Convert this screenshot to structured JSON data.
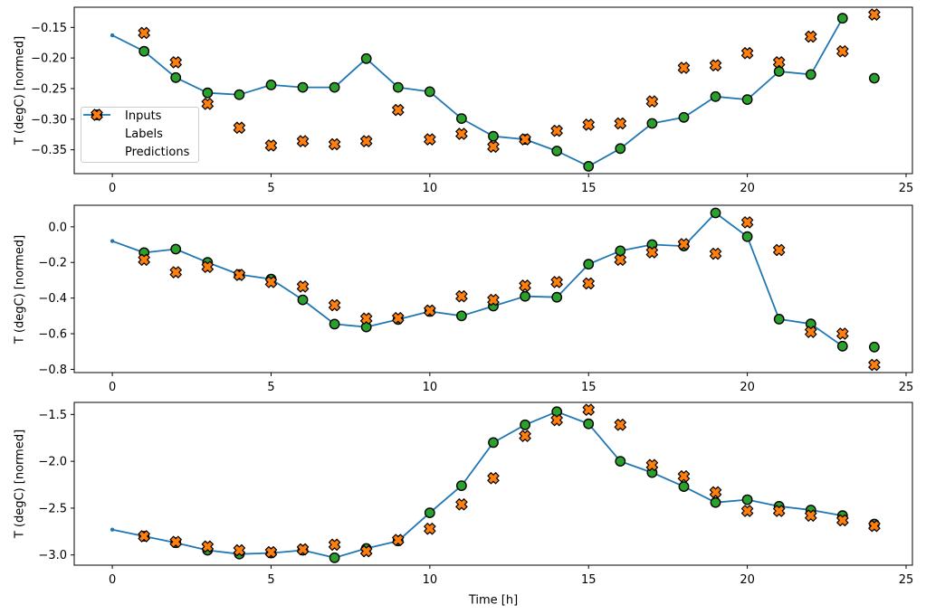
{
  "figure": {
    "title": "",
    "xlabel": "Time [h]",
    "ylabel": "T (degC) [normed]",
    "background": "#ffffff",
    "colors": {
      "inputs": "#1f77b4",
      "labels": "#2ca02c",
      "predictions": "#ff7f0e",
      "marker_edge": "#000000",
      "axis": "#000000",
      "legend_border": "#cccccc"
    },
    "legend": {
      "position": "upper-left-of-panel-1",
      "items": [
        {
          "label": "Inputs",
          "marker": "line-dot",
          "color": "#1f77b4"
        },
        {
          "label": "Labels",
          "marker": "circle",
          "color": "#2ca02c"
        },
        {
          "label": "Predictions",
          "marker": "X",
          "color": "#ff7f0e"
        }
      ]
    }
  },
  "chart_data": [
    {
      "panel": 1,
      "type": "line",
      "title": "",
      "ylabel": "T (degC) [normed]",
      "grid": false,
      "xlim": [
        -1.2,
        25.2
      ],
      "ylim": [
        -0.389,
        -0.117
      ],
      "xticks": {
        "values": [
          0,
          5,
          10,
          15,
          20,
          25
        ],
        "labels": [
          "0",
          "5",
          "10",
          "15",
          "20",
          "25"
        ]
      },
      "yticks": {
        "values": [
          -0.15,
          -0.2,
          -0.25,
          -0.3,
          -0.35
        ],
        "labels": [
          "−0.15",
          "−0.20",
          "−0.25",
          "−0.30",
          "−0.35"
        ]
      },
      "x_inputs": [
        0,
        1,
        2,
        3,
        4,
        5,
        6,
        7,
        8,
        9,
        10,
        11,
        12,
        13,
        14,
        15,
        16,
        17,
        18,
        19,
        20,
        21,
        22,
        23
      ],
      "x_targets": [
        1,
        2,
        3,
        4,
        5,
        6,
        7,
        8,
        9,
        10,
        11,
        12,
        13,
        14,
        15,
        16,
        17,
        18,
        19,
        20,
        21,
        22,
        23,
        24
      ],
      "inputs": [
        -0.163,
        -0.189,
        -0.232,
        -0.257,
        -0.26,
        -0.244,
        -0.248,
        -0.248,
        -0.201,
        -0.248,
        -0.255,
        -0.299,
        -0.328,
        -0.333,
        -0.352,
        -0.377,
        -0.348,
        -0.307,
        -0.297,
        -0.263,
        -0.268,
        -0.222,
        -0.227,
        -0.135
      ],
      "labels": [
        -0.189,
        -0.232,
        -0.257,
        -0.26,
        -0.244,
        -0.248,
        -0.248,
        -0.201,
        -0.248,
        -0.255,
        -0.299,
        -0.328,
        -0.333,
        -0.352,
        -0.377,
        -0.348,
        -0.307,
        -0.297,
        -0.263,
        -0.268,
        -0.222,
        -0.227,
        -0.135,
        -0.233
      ],
      "predictions": [
        -0.159,
        -0.207,
        -0.275,
        -0.314,
        -0.343,
        -0.336,
        -0.341,
        -0.336,
        -0.285,
        -0.333,
        -0.324,
        -0.345,
        -0.333,
        -0.319,
        -0.309,
        -0.307,
        -0.271,
        -0.216,
        -0.212,
        -0.192,
        -0.207,
        -0.165,
        -0.189,
        -0.129
      ]
    },
    {
      "panel": 2,
      "type": "line",
      "title": "",
      "ylabel": "T (degC) [normed]",
      "grid": false,
      "xlim": [
        -1.2,
        25.2
      ],
      "ylim": [
        -0.818,
        0.121
      ],
      "xticks": {
        "values": [
          0,
          5,
          10,
          15,
          20,
          25
        ],
        "labels": [
          "0",
          "5",
          "10",
          "15",
          "20",
          "25"
        ]
      },
      "yticks": {
        "values": [
          0.0,
          -0.2,
          -0.4,
          -0.6,
          -0.8
        ],
        "labels": [
          "0.0",
          "−0.2",
          "−0.4",
          "−0.6",
          "−0.8"
        ]
      },
      "x_inputs": [
        0,
        1,
        2,
        3,
        4,
        5,
        6,
        7,
        8,
        9,
        10,
        11,
        12,
        13,
        14,
        15,
        16,
        17,
        18,
        19,
        20,
        21,
        22,
        23
      ],
      "x_targets": [
        1,
        2,
        3,
        4,
        5,
        6,
        7,
        8,
        9,
        10,
        11,
        12,
        13,
        14,
        15,
        16,
        17,
        18,
        19,
        20,
        21,
        22,
        23,
        24
      ],
      "inputs": [
        -0.08,
        -0.145,
        -0.125,
        -0.2,
        -0.268,
        -0.293,
        -0.41,
        -0.546,
        -0.562,
        -0.52,
        -0.475,
        -0.5,
        -0.445,
        -0.39,
        -0.395,
        -0.21,
        -0.135,
        -0.1,
        -0.108,
        0.078,
        -0.055,
        -0.518,
        -0.545,
        -0.67
      ],
      "labels": [
        -0.145,
        -0.125,
        -0.2,
        -0.268,
        -0.293,
        -0.41,
        -0.546,
        -0.562,
        -0.52,
        -0.475,
        -0.5,
        -0.445,
        -0.39,
        -0.395,
        -0.21,
        -0.135,
        -0.1,
        -0.108,
        0.078,
        -0.055,
        -0.518,
        -0.545,
        -0.67,
        -0.675
      ],
      "predictions": [
        -0.185,
        -0.255,
        -0.225,
        -0.27,
        -0.31,
        -0.335,
        -0.44,
        -0.515,
        -0.512,
        -0.47,
        -0.39,
        -0.41,
        -0.33,
        -0.31,
        -0.318,
        -0.185,
        -0.143,
        -0.097,
        -0.151,
        0.025,
        -0.13,
        -0.59,
        -0.6,
        -0.775
      ]
    },
    {
      "panel": 3,
      "type": "line",
      "title": "",
      "ylabel": "T (degC) [normed]",
      "grid": false,
      "xlim": [
        -1.2,
        25.2
      ],
      "ylim": [
        -3.109,
        -1.371
      ],
      "xticks": {
        "values": [
          0,
          5,
          10,
          15,
          20,
          25
        ],
        "labels": [
          "0",
          "5",
          "10",
          "15",
          "20",
          "25"
        ]
      },
      "yticks": {
        "values": [
          -1.5,
          -2.0,
          -2.5,
          -3.0
        ],
        "labels": [
          "−1.5",
          "−2.0",
          "−2.5",
          "−3.0"
        ]
      },
      "x_inputs": [
        0,
        1,
        2,
        3,
        4,
        5,
        6,
        7,
        8,
        9,
        10,
        11,
        12,
        13,
        14,
        15,
        16,
        17,
        18,
        19,
        20,
        21,
        22,
        23
      ],
      "x_targets": [
        1,
        2,
        3,
        4,
        5,
        6,
        7,
        8,
        9,
        10,
        11,
        12,
        13,
        14,
        15,
        16,
        17,
        18,
        19,
        20,
        21,
        22,
        23,
        24
      ],
      "inputs": [
        -2.73,
        -2.8,
        -2.87,
        -2.95,
        -2.99,
        -2.98,
        -2.95,
        -3.03,
        -2.93,
        -2.85,
        -2.55,
        -2.26,
        -1.8,
        -1.61,
        -1.47,
        -1.6,
        -2.0,
        -2.12,
        -2.27,
        -2.44,
        -2.41,
        -2.48,
        -2.52,
        -2.58
      ],
      "labels": [
        -2.8,
        -2.87,
        -2.95,
        -2.99,
        -2.98,
        -2.95,
        -3.03,
        -2.93,
        -2.85,
        -2.55,
        -2.26,
        -1.8,
        -1.61,
        -1.47,
        -1.6,
        -2.0,
        -2.12,
        -2.27,
        -2.44,
        -2.41,
        -2.48,
        -2.52,
        -2.58,
        -2.67
      ],
      "predictions": [
        -2.8,
        -2.86,
        -2.91,
        -2.95,
        -2.97,
        -2.94,
        -2.89,
        -2.96,
        -2.84,
        -2.72,
        -2.46,
        -2.18,
        -1.73,
        -1.56,
        -1.45,
        -1.61,
        -2.04,
        -2.16,
        -2.33,
        -2.53,
        -2.53,
        -2.58,
        -2.63,
        -2.69
      ]
    }
  ]
}
